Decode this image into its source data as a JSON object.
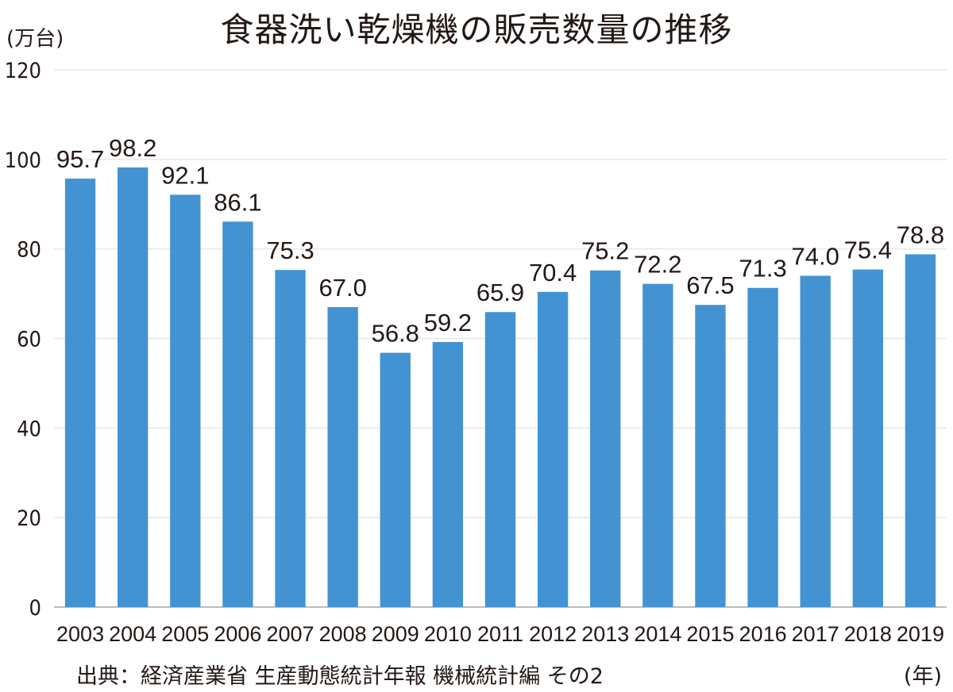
{
  "chart_data": {
    "type": "bar",
    "title": "食器洗い乾燥機の販売数量の推移",
    "ylabel": "(万台)",
    "xlabel": "(年)",
    "ylim": [
      0,
      120
    ],
    "y_ticks": [
      0,
      20,
      40,
      60,
      80,
      100,
      120
    ],
    "grid": true,
    "categories": [
      "2003",
      "2004",
      "2005",
      "2006",
      "2007",
      "2008",
      "2009",
      "2010",
      "2011",
      "2012",
      "2013",
      "2014",
      "2015",
      "2016",
      "2017",
      "2018",
      "2019"
    ],
    "values": [
      95.7,
      98.2,
      92.1,
      86.1,
      75.3,
      67.0,
      56.8,
      59.2,
      65.9,
      70.4,
      75.2,
      72.2,
      67.5,
      71.3,
      74.0,
      75.4,
      78.8
    ],
    "value_labels": [
      "95.7",
      "98.2",
      "92.1",
      "86.1",
      "75.3",
      "67.0",
      "56.8",
      "59.2",
      "65.9",
      "70.4",
      "75.2",
      "72.2",
      "67.5",
      "71.3",
      "74.0",
      "75.4",
      "78.8"
    ],
    "source": "出典：経済産業省 生産動態統計年報 機械統計編 その2",
    "bar_color": "#4393d3",
    "grid_color": "#e6e6e6",
    "axis_color": "#bdbdbd"
  }
}
